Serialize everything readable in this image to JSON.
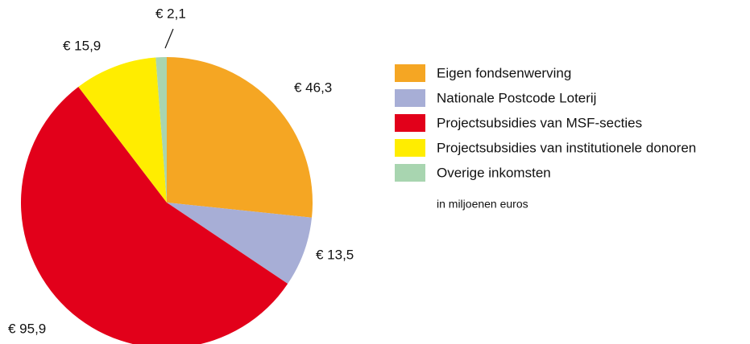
{
  "chart_data": {
    "type": "pie",
    "categories": [
      "Eigen fondsenwerving",
      "Nationale Postcode Loterij",
      "Projectsubsidies van MSF-secties",
      "Projectsubsidies van institutionele donoren",
      "Overige inkomsten"
    ],
    "values": [
      46.3,
      13.5,
      95.9,
      15.9,
      2.1
    ],
    "value_labels": [
      "€ 46,3",
      "€ 13,5",
      "€ 95,9",
      "€ 15,9",
      "€ 2,1"
    ],
    "colors": [
      "#f5a623",
      "#a7aed6",
      "#e2001a",
      "#ffed00",
      "#a8d5b0"
    ],
    "note": "in miljoenen euros"
  }
}
